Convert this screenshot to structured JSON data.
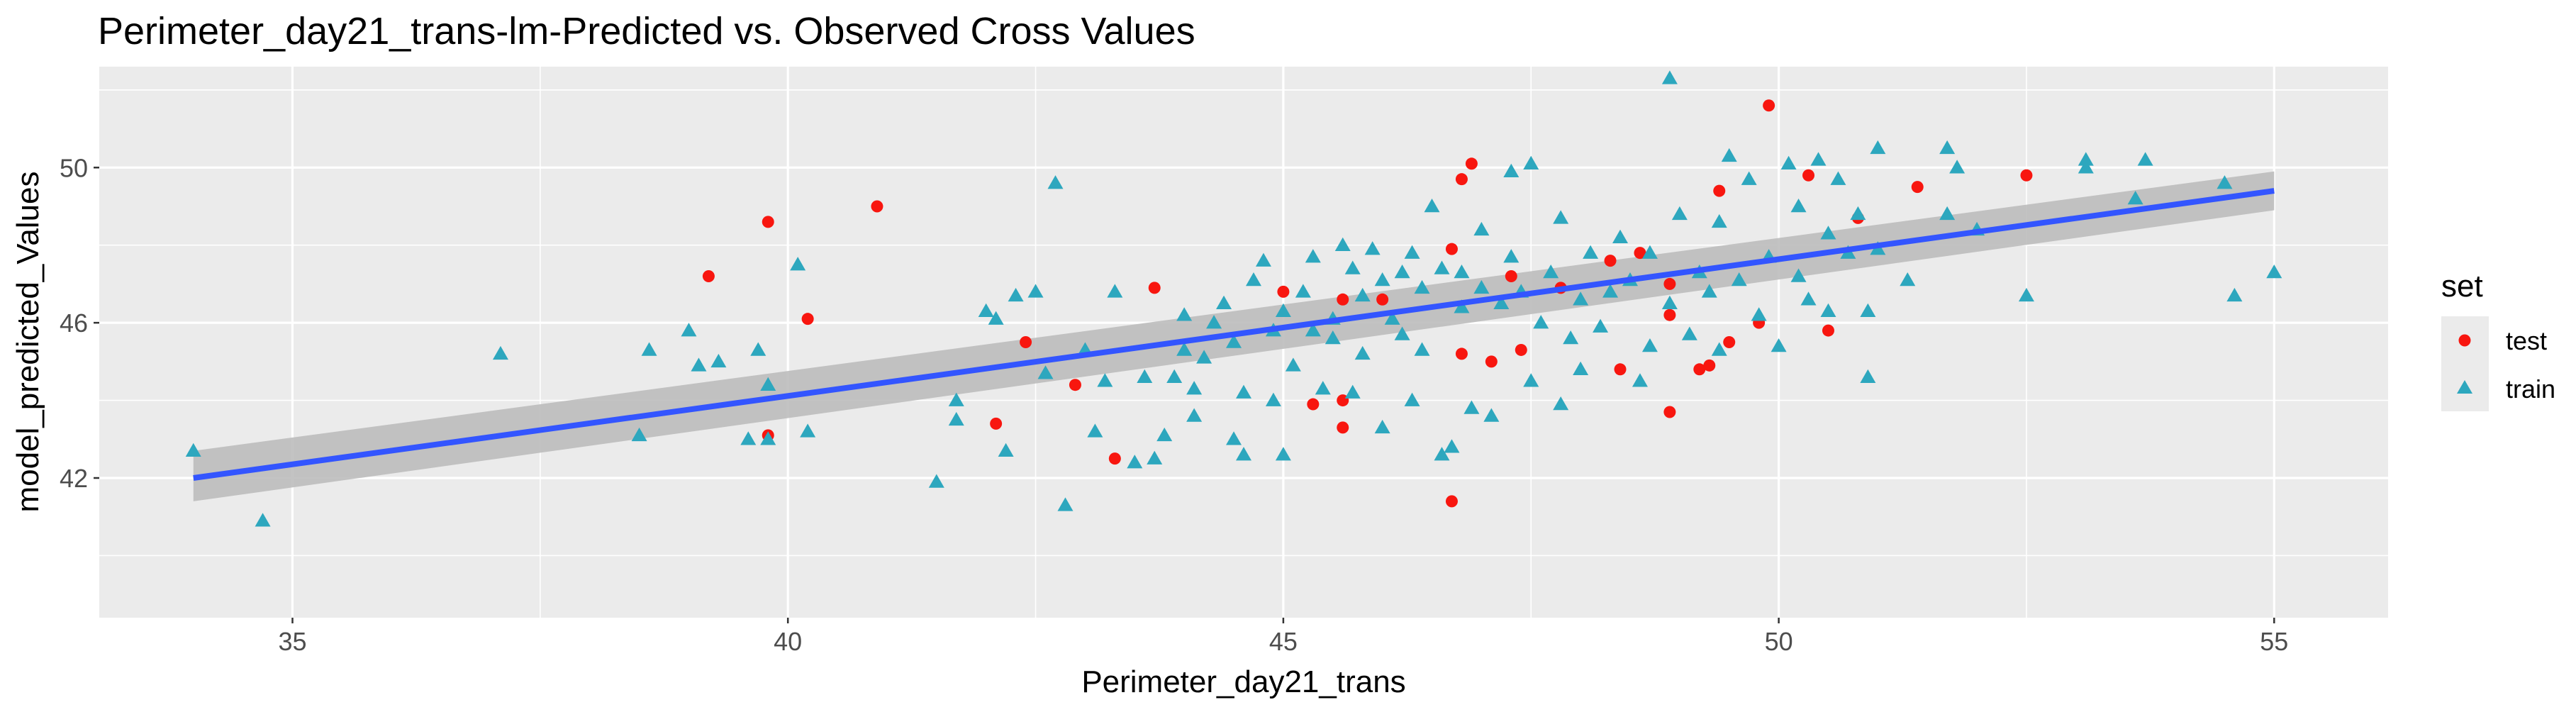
{
  "chart_data": {
    "type": "scatter",
    "title": "Perimeter_day21_trans-lm-Predicted vs. Observed Cross Values",
    "xlabel": "Perimeter_day21_trans",
    "ylabel": "model_predicted_Values",
    "xlim": [
      33.05,
      56.15
    ],
    "ylim": [
      38.4,
      52.6
    ],
    "x_ticks": [
      35,
      40,
      45,
      50,
      55
    ],
    "y_ticks": [
      42,
      46,
      50
    ],
    "grid": true,
    "legend": {
      "title": "set",
      "position": "right",
      "entries": [
        {
          "label": "test",
          "shape": "circle",
          "color": "#F8160F"
        },
        {
          "label": "train",
          "shape": "triangle",
          "color": "#2DA7BE"
        }
      ]
    },
    "colors": {
      "panel": "#EBEBEB",
      "grid": "#FFFFFF",
      "fit_line": "#3355FF",
      "confidence_band": "#BDBDBD"
    },
    "fit_line": {
      "x": [
        34.0,
        55.0
      ],
      "y": [
        42.0,
        49.4
      ],
      "band_lower": [
        41.4,
        48.9
      ],
      "band_upper": [
        42.7,
        49.9
      ]
    },
    "series": [
      {
        "name": "test",
        "shape": "circle",
        "points": [
          [
            39.2,
            47.2
          ],
          [
            39.8,
            48.6
          ],
          [
            39.8,
            43.1
          ],
          [
            40.2,
            46.1
          ],
          [
            40.9,
            49.0
          ],
          [
            42.1,
            43.4
          ],
          [
            42.4,
            45.5
          ],
          [
            42.9,
            44.4
          ],
          [
            43.3,
            42.5
          ],
          [
            43.7,
            46.9
          ],
          [
            45.0,
            46.8
          ],
          [
            45.3,
            43.9
          ],
          [
            45.6,
            44.0
          ],
          [
            45.6,
            43.3
          ],
          [
            45.6,
            46.6
          ],
          [
            46.0,
            46.6
          ],
          [
            46.7,
            47.9
          ],
          [
            46.8,
            49.7
          ],
          [
            46.9,
            50.1
          ],
          [
            46.8,
            45.2
          ],
          [
            47.1,
            45.0
          ],
          [
            47.3,
            47.2
          ],
          [
            47.4,
            45.3
          ],
          [
            46.7,
            41.4
          ],
          [
            48.3,
            47.6
          ],
          [
            48.4,
            44.8
          ],
          [
            48.6,
            47.8
          ],
          [
            48.9,
            47.0
          ],
          [
            48.9,
            43.7
          ],
          [
            49.2,
            44.8
          ],
          [
            49.3,
            44.9
          ],
          [
            49.4,
            49.4
          ],
          [
            49.5,
            45.5
          ],
          [
            49.8,
            46.0
          ],
          [
            49.9,
            51.6
          ],
          [
            50.3,
            49.8
          ],
          [
            50.5,
            45.8
          ],
          [
            50.8,
            48.7
          ],
          [
            51.4,
            49.5
          ],
          [
            52.5,
            49.8
          ],
          [
            48.9,
            46.2
          ],
          [
            47.8,
            46.9
          ]
        ]
      },
      {
        "name": "train",
        "shape": "triangle",
        "points": [
          [
            34.0,
            42.7
          ],
          [
            34.7,
            40.9
          ],
          [
            37.1,
            45.2
          ],
          [
            38.5,
            43.1
          ],
          [
            38.6,
            45.3
          ],
          [
            39.0,
            45.8
          ],
          [
            39.1,
            44.9
          ],
          [
            39.3,
            45.0
          ],
          [
            39.6,
            43.0
          ],
          [
            39.7,
            45.3
          ],
          [
            39.8,
            43.0
          ],
          [
            39.8,
            44.4
          ],
          [
            40.1,
            47.5
          ],
          [
            40.2,
            43.2
          ],
          [
            41.5,
            41.9
          ],
          [
            41.7,
            43.5
          ],
          [
            41.7,
            44.0
          ],
          [
            42.0,
            46.3
          ],
          [
            42.1,
            46.1
          ],
          [
            42.2,
            42.7
          ],
          [
            42.3,
            46.7
          ],
          [
            42.5,
            46.8
          ],
          [
            42.6,
            44.7
          ],
          [
            42.7,
            49.6
          ],
          [
            42.8,
            41.3
          ],
          [
            43.0,
            45.3
          ],
          [
            43.1,
            43.2
          ],
          [
            43.2,
            44.5
          ],
          [
            43.3,
            46.8
          ],
          [
            43.5,
            42.4
          ],
          [
            43.6,
            44.6
          ],
          [
            43.7,
            42.5
          ],
          [
            43.8,
            43.1
          ],
          [
            43.9,
            44.6
          ],
          [
            44.0,
            46.2
          ],
          [
            44.0,
            45.3
          ],
          [
            44.1,
            43.6
          ],
          [
            44.1,
            44.3
          ],
          [
            44.2,
            45.1
          ],
          [
            44.3,
            46.0
          ],
          [
            44.4,
            46.5
          ],
          [
            44.5,
            45.5
          ],
          [
            44.5,
            43.0
          ],
          [
            44.6,
            44.2
          ],
          [
            44.6,
            42.6
          ],
          [
            44.7,
            47.1
          ],
          [
            44.8,
            47.6
          ],
          [
            44.9,
            44.0
          ],
          [
            44.9,
            45.8
          ],
          [
            45.0,
            46.3
          ],
          [
            45.0,
            42.6
          ],
          [
            45.1,
            44.9
          ],
          [
            45.2,
            46.8
          ],
          [
            45.3,
            47.7
          ],
          [
            45.3,
            45.8
          ],
          [
            45.4,
            44.3
          ],
          [
            45.5,
            46.1
          ],
          [
            45.5,
            45.6
          ],
          [
            45.6,
            48.0
          ],
          [
            45.7,
            47.4
          ],
          [
            45.7,
            44.2
          ],
          [
            45.8,
            45.2
          ],
          [
            45.8,
            46.7
          ],
          [
            45.9,
            47.9
          ],
          [
            46.0,
            43.3
          ],
          [
            46.0,
            47.1
          ],
          [
            46.1,
            46.1
          ],
          [
            46.2,
            45.7
          ],
          [
            46.2,
            47.3
          ],
          [
            46.3,
            44.0
          ],
          [
            46.3,
            47.8
          ],
          [
            46.4,
            46.9
          ],
          [
            46.4,
            45.3
          ],
          [
            46.5,
            49.0
          ],
          [
            46.6,
            42.6
          ],
          [
            46.6,
            47.4
          ],
          [
            46.7,
            42.8
          ],
          [
            46.8,
            46.4
          ],
          [
            46.8,
            47.3
          ],
          [
            46.9,
            43.8
          ],
          [
            47.0,
            46.9
          ],
          [
            47.0,
            48.4
          ],
          [
            47.1,
            43.6
          ],
          [
            47.2,
            46.5
          ],
          [
            47.3,
            47.7
          ],
          [
            47.3,
            49.9
          ],
          [
            47.4,
            46.8
          ],
          [
            47.5,
            50.1
          ],
          [
            47.5,
            44.5
          ],
          [
            47.6,
            46.0
          ],
          [
            47.7,
            47.3
          ],
          [
            47.8,
            48.7
          ],
          [
            47.8,
            43.9
          ],
          [
            47.9,
            45.6
          ],
          [
            48.0,
            46.6
          ],
          [
            48.0,
            44.8
          ],
          [
            48.1,
            47.8
          ],
          [
            48.2,
            45.9
          ],
          [
            48.3,
            46.8
          ],
          [
            48.4,
            48.2
          ],
          [
            48.5,
            47.1
          ],
          [
            48.6,
            44.5
          ],
          [
            48.7,
            47.8
          ],
          [
            48.7,
            45.4
          ],
          [
            48.9,
            52.3
          ],
          [
            48.9,
            46.5
          ],
          [
            49.0,
            48.8
          ],
          [
            49.1,
            45.7
          ],
          [
            49.2,
            47.3
          ],
          [
            49.3,
            46.8
          ],
          [
            49.4,
            48.6
          ],
          [
            49.4,
            45.3
          ],
          [
            49.5,
            50.3
          ],
          [
            49.6,
            47.1
          ],
          [
            49.7,
            49.7
          ],
          [
            49.8,
            46.2
          ],
          [
            49.9,
            47.7
          ],
          [
            50.0,
            45.4
          ],
          [
            50.1,
            50.1
          ],
          [
            50.2,
            49.0
          ],
          [
            50.2,
            47.2
          ],
          [
            50.3,
            46.6
          ],
          [
            50.4,
            50.2
          ],
          [
            50.5,
            48.3
          ],
          [
            50.5,
            46.3
          ],
          [
            50.6,
            49.7
          ],
          [
            50.7,
            47.8
          ],
          [
            50.8,
            48.8
          ],
          [
            50.9,
            46.3
          ],
          [
            50.9,
            44.6
          ],
          [
            51.0,
            50.5
          ],
          [
            51.0,
            47.9
          ],
          [
            51.3,
            47.1
          ],
          [
            51.7,
            48.8
          ],
          [
            51.7,
            50.5
          ],
          [
            51.8,
            50.0
          ],
          [
            52.0,
            48.4
          ],
          [
            52.5,
            46.7
          ],
          [
            53.1,
            50.2
          ],
          [
            53.1,
            50.0
          ],
          [
            53.6,
            49.2
          ],
          [
            53.7,
            50.2
          ],
          [
            54.5,
            49.6
          ],
          [
            54.6,
            46.7
          ],
          [
            55.0,
            47.3
          ]
        ]
      }
    ]
  }
}
